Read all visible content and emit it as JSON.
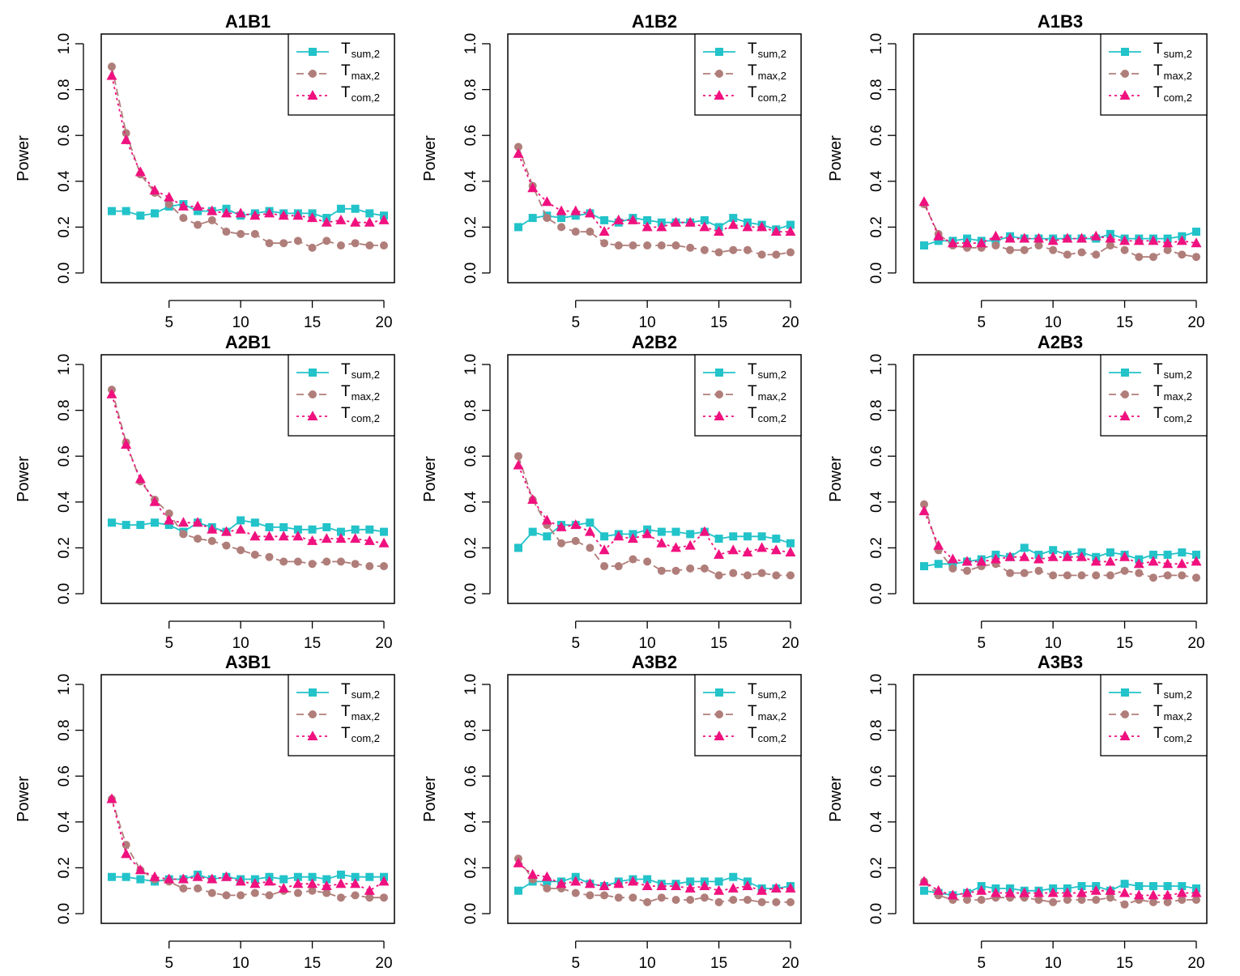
{
  "colors": {
    "sum": "#22C3C9",
    "max": "#B07E7A",
    "com": "#F0117F",
    "axis": "#000000"
  },
  "icons": {
    "sum": "square-marker",
    "max": "circle-marker",
    "com": "triangle-marker"
  },
  "legend": [
    {
      "key": "sum",
      "main": "T",
      "sub": "sum,2",
      "line": "solid"
    },
    {
      "key": "max",
      "main": "T",
      "sub": "max,2",
      "line": "dashed"
    },
    {
      "key": "com",
      "main": "T",
      "sub": "com,2",
      "line": "dotted"
    }
  ],
  "chart_data": [
    {
      "type": "line",
      "title": "A1B1",
      "xlabel": "",
      "ylabel": "Power",
      "xlim": [
        1,
        20
      ],
      "ylim": [
        0,
        1
      ],
      "xticks": [
        5,
        10,
        15,
        20
      ],
      "yticks": [
        "0.0",
        "0.2",
        "0.4",
        "0.6",
        "0.8",
        "1.0"
      ],
      "grid": false,
      "legend_position": "top-right",
      "x": [
        1,
        2,
        3,
        4,
        5,
        6,
        7,
        8,
        9,
        10,
        11,
        12,
        13,
        14,
        15,
        16,
        17,
        18,
        19,
        20
      ],
      "series": [
        {
          "key": "sum",
          "name": "T sum,2",
          "values": [
            0.27,
            0.27,
            0.25,
            0.26,
            0.29,
            0.3,
            0.27,
            0.27,
            0.28,
            0.25,
            0.26,
            0.27,
            0.26,
            0.26,
            0.26,
            0.24,
            0.28,
            0.28,
            0.26,
            0.25
          ]
        },
        {
          "key": "max",
          "name": "T max,2",
          "values": [
            0.9,
            0.61,
            0.43,
            0.35,
            0.3,
            0.24,
            0.21,
            0.23,
            0.18,
            0.17,
            0.17,
            0.13,
            0.13,
            0.14,
            0.11,
            0.14,
            0.12,
            0.13,
            0.12,
            0.12
          ]
        },
        {
          "key": "com",
          "name": "T com,2",
          "values": [
            0.86,
            0.58,
            0.44,
            0.36,
            0.33,
            0.29,
            0.29,
            0.27,
            0.26,
            0.26,
            0.25,
            0.26,
            0.25,
            0.25,
            0.24,
            0.22,
            0.23,
            0.22,
            0.22,
            0.23
          ]
        }
      ]
    },
    {
      "type": "line",
      "title": "A1B2",
      "xlabel": "",
      "ylabel": "Power",
      "xlim": [
        1,
        20
      ],
      "ylim": [
        0,
        1
      ],
      "xticks": [
        5,
        10,
        15,
        20
      ],
      "yticks": [
        "0.0",
        "0.2",
        "0.4",
        "0.6",
        "0.8",
        "1.0"
      ],
      "grid": false,
      "legend_position": "top-right",
      "x": [
        1,
        2,
        3,
        4,
        5,
        6,
        7,
        8,
        9,
        10,
        11,
        12,
        13,
        14,
        15,
        16,
        17,
        18,
        19,
        20
      ],
      "series": [
        {
          "key": "sum",
          "name": "T sum,2",
          "values": [
            0.2,
            0.24,
            0.25,
            0.24,
            0.25,
            0.26,
            0.23,
            0.22,
            0.24,
            0.23,
            0.22,
            0.22,
            0.22,
            0.23,
            0.2,
            0.24,
            0.22,
            0.21,
            0.19,
            0.21
          ]
        },
        {
          "key": "max",
          "name": "T max,2",
          "values": [
            0.55,
            0.38,
            0.24,
            0.2,
            0.18,
            0.18,
            0.13,
            0.12,
            0.12,
            0.12,
            0.12,
            0.12,
            0.11,
            0.1,
            0.09,
            0.1,
            0.1,
            0.08,
            0.08,
            0.09
          ]
        },
        {
          "key": "com",
          "name": "T com,2",
          "values": [
            0.52,
            0.37,
            0.31,
            0.27,
            0.27,
            0.26,
            0.18,
            0.23,
            0.23,
            0.2,
            0.2,
            0.22,
            0.22,
            0.2,
            0.18,
            0.21,
            0.2,
            0.2,
            0.18,
            0.18
          ]
        }
      ]
    },
    {
      "type": "line",
      "title": "A1B3",
      "xlabel": "",
      "ylabel": "Power",
      "xlim": [
        1,
        20
      ],
      "ylim": [
        0,
        1
      ],
      "xticks": [
        5,
        10,
        15,
        20
      ],
      "yticks": [
        "0.0",
        "0.2",
        "0.4",
        "0.6",
        "0.8",
        "1.0"
      ],
      "grid": false,
      "legend_position": "top-right",
      "x": [
        1,
        2,
        3,
        4,
        5,
        6,
        7,
        8,
        9,
        10,
        11,
        12,
        13,
        14,
        15,
        16,
        17,
        18,
        19,
        20
      ],
      "series": [
        {
          "key": "sum",
          "name": "T sum,2",
          "values": [
            0.12,
            0.14,
            0.14,
            0.15,
            0.14,
            0.14,
            0.16,
            0.15,
            0.15,
            0.15,
            0.15,
            0.15,
            0.15,
            0.17,
            0.15,
            0.15,
            0.15,
            0.15,
            0.16,
            0.18
          ]
        },
        {
          "key": "max",
          "name": "T max,2",
          "values": [
            0.3,
            0.17,
            0.12,
            0.11,
            0.11,
            0.12,
            0.1,
            0.1,
            0.12,
            0.1,
            0.08,
            0.09,
            0.08,
            0.12,
            0.1,
            0.07,
            0.07,
            0.1,
            0.08,
            0.07
          ]
        },
        {
          "key": "com",
          "name": "T com,2",
          "values": [
            0.31,
            0.16,
            0.13,
            0.13,
            0.13,
            0.16,
            0.15,
            0.15,
            0.15,
            0.14,
            0.15,
            0.15,
            0.16,
            0.15,
            0.14,
            0.14,
            0.14,
            0.13,
            0.14,
            0.13
          ]
        }
      ]
    },
    {
      "type": "line",
      "title": "A2B1",
      "xlabel": "",
      "ylabel": "Power",
      "xlim": [
        1,
        20
      ],
      "ylim": [
        0,
        1
      ],
      "xticks": [
        5,
        10,
        15,
        20
      ],
      "yticks": [
        "0.0",
        "0.2",
        "0.4",
        "0.6",
        "0.8",
        "1.0"
      ],
      "grid": false,
      "legend_position": "top-right",
      "x": [
        1,
        2,
        3,
        4,
        5,
        6,
        7,
        8,
        9,
        10,
        11,
        12,
        13,
        14,
        15,
        16,
        17,
        18,
        19,
        20
      ],
      "series": [
        {
          "key": "sum",
          "name": "T sum,2",
          "values": [
            0.31,
            0.3,
            0.3,
            0.31,
            0.3,
            0.27,
            0.31,
            0.29,
            0.27,
            0.32,
            0.31,
            0.29,
            0.29,
            0.28,
            0.28,
            0.29,
            0.27,
            0.28,
            0.28,
            0.27
          ]
        },
        {
          "key": "max",
          "name": "T max,2",
          "values": [
            0.89,
            0.66,
            0.49,
            0.41,
            0.35,
            0.26,
            0.24,
            0.23,
            0.21,
            0.19,
            0.17,
            0.16,
            0.14,
            0.14,
            0.13,
            0.14,
            0.14,
            0.13,
            0.12,
            0.12
          ]
        },
        {
          "key": "com",
          "name": "T com,2",
          "values": [
            0.87,
            0.65,
            0.5,
            0.4,
            0.32,
            0.31,
            0.31,
            0.28,
            0.27,
            0.28,
            0.25,
            0.25,
            0.25,
            0.25,
            0.23,
            0.24,
            0.24,
            0.24,
            0.23,
            0.22
          ]
        }
      ]
    },
    {
      "type": "line",
      "title": "A2B2",
      "xlabel": "",
      "ylabel": "Power",
      "xlim": [
        1,
        20
      ],
      "ylim": [
        0,
        1
      ],
      "xticks": [
        5,
        10,
        15,
        20
      ],
      "yticks": [
        "0.0",
        "0.2",
        "0.4",
        "0.6",
        "0.8",
        "1.0"
      ],
      "grid": false,
      "legend_position": "top-right",
      "x": [
        1,
        2,
        3,
        4,
        5,
        6,
        7,
        8,
        9,
        10,
        11,
        12,
        13,
        14,
        15,
        16,
        17,
        18,
        19,
        20
      ],
      "series": [
        {
          "key": "sum",
          "name": "T sum,2",
          "values": [
            0.2,
            0.27,
            0.25,
            0.3,
            0.3,
            0.31,
            0.25,
            0.26,
            0.26,
            0.28,
            0.27,
            0.27,
            0.26,
            0.27,
            0.24,
            0.25,
            0.25,
            0.25,
            0.24,
            0.22
          ]
        },
        {
          "key": "max",
          "name": "T max,2",
          "values": [
            0.6,
            0.41,
            0.3,
            0.22,
            0.23,
            0.2,
            0.12,
            0.12,
            0.15,
            0.14,
            0.1,
            0.1,
            0.11,
            0.11,
            0.08,
            0.09,
            0.08,
            0.09,
            0.08,
            0.08
          ]
        },
        {
          "key": "com",
          "name": "T com,2",
          "values": [
            0.56,
            0.41,
            0.32,
            0.29,
            0.3,
            0.27,
            0.19,
            0.25,
            0.24,
            0.26,
            0.22,
            0.2,
            0.21,
            0.27,
            0.17,
            0.19,
            0.18,
            0.2,
            0.19,
            0.18
          ]
        }
      ]
    },
    {
      "type": "line",
      "title": "A2B3",
      "xlabel": "",
      "ylabel": "Power",
      "xlim": [
        1,
        20
      ],
      "ylim": [
        0,
        1
      ],
      "xticks": [
        5,
        10,
        15,
        20
      ],
      "yticks": [
        "0.0",
        "0.2",
        "0.4",
        "0.6",
        "0.8",
        "1.0"
      ],
      "grid": false,
      "legend_position": "top-right",
      "x": [
        1,
        2,
        3,
        4,
        5,
        6,
        7,
        8,
        9,
        10,
        11,
        12,
        13,
        14,
        15,
        16,
        17,
        18,
        19,
        20
      ],
      "series": [
        {
          "key": "sum",
          "name": "T sum,2",
          "values": [
            0.12,
            0.13,
            0.13,
            0.14,
            0.15,
            0.17,
            0.16,
            0.2,
            0.17,
            0.19,
            0.17,
            0.18,
            0.16,
            0.18,
            0.17,
            0.15,
            0.17,
            0.17,
            0.18,
            0.17
          ]
        },
        {
          "key": "max",
          "name": "T max,2",
          "values": [
            0.39,
            0.19,
            0.11,
            0.1,
            0.12,
            0.13,
            0.09,
            0.09,
            0.1,
            0.08,
            0.08,
            0.08,
            0.08,
            0.08,
            0.1,
            0.09,
            0.07,
            0.08,
            0.08,
            0.07
          ]
        },
        {
          "key": "com",
          "name": "T com,2",
          "values": [
            0.36,
            0.21,
            0.15,
            0.14,
            0.14,
            0.15,
            0.16,
            0.16,
            0.15,
            0.16,
            0.16,
            0.16,
            0.14,
            0.14,
            0.16,
            0.13,
            0.14,
            0.13,
            0.13,
            0.14
          ]
        }
      ]
    },
    {
      "type": "line",
      "title": "A3B1",
      "xlabel": "",
      "ylabel": "Power",
      "xlim": [
        1,
        20
      ],
      "ylim": [
        0,
        1
      ],
      "xticks": [
        5,
        10,
        15,
        20
      ],
      "yticks": [
        "0.0",
        "0.2",
        "0.4",
        "0.6",
        "0.8",
        "1.0"
      ],
      "grid": false,
      "legend_position": "top-right",
      "x": [
        1,
        2,
        3,
        4,
        5,
        6,
        7,
        8,
        9,
        10,
        11,
        12,
        13,
        14,
        15,
        16,
        17,
        18,
        19,
        20
      ],
      "series": [
        {
          "key": "sum",
          "name": "T sum,2",
          "values": [
            0.16,
            0.16,
            0.15,
            0.14,
            0.15,
            0.15,
            0.17,
            0.15,
            0.16,
            0.15,
            0.15,
            0.16,
            0.15,
            0.16,
            0.16,
            0.15,
            0.17,
            0.16,
            0.16,
            0.16
          ]
        },
        {
          "key": "max",
          "name": "T max,2",
          "values": [
            0.5,
            0.3,
            0.19,
            0.15,
            0.14,
            0.11,
            0.11,
            0.09,
            0.08,
            0.08,
            0.09,
            0.08,
            0.1,
            0.09,
            0.1,
            0.09,
            0.07,
            0.08,
            0.07,
            0.07
          ]
        },
        {
          "key": "com",
          "name": "T com,2",
          "values": [
            0.5,
            0.26,
            0.19,
            0.16,
            0.15,
            0.15,
            0.16,
            0.15,
            0.16,
            0.14,
            0.13,
            0.14,
            0.11,
            0.13,
            0.13,
            0.12,
            0.13,
            0.13,
            0.1,
            0.14
          ]
        }
      ]
    },
    {
      "type": "line",
      "title": "A3B2",
      "xlabel": "",
      "ylabel": "Power",
      "xlim": [
        1,
        20
      ],
      "ylim": [
        0,
        1
      ],
      "xticks": [
        5,
        10,
        15,
        20
      ],
      "yticks": [
        "0.0",
        "0.2",
        "0.4",
        "0.6",
        "0.8",
        "1.0"
      ],
      "grid": false,
      "legend_position": "top-right",
      "x": [
        1,
        2,
        3,
        4,
        5,
        6,
        7,
        8,
        9,
        10,
        11,
        12,
        13,
        14,
        15,
        16,
        17,
        18,
        19,
        20
      ],
      "series": [
        {
          "key": "sum",
          "name": "T sum,2",
          "values": [
            0.1,
            0.14,
            0.14,
            0.14,
            0.16,
            0.13,
            0.12,
            0.14,
            0.15,
            0.15,
            0.13,
            0.13,
            0.14,
            0.14,
            0.14,
            0.16,
            0.14,
            0.11,
            0.11,
            0.12
          ]
        },
        {
          "key": "max",
          "name": "T max,2",
          "values": [
            0.24,
            0.15,
            0.11,
            0.11,
            0.09,
            0.08,
            0.08,
            0.07,
            0.07,
            0.05,
            0.07,
            0.06,
            0.06,
            0.07,
            0.05,
            0.06,
            0.06,
            0.05,
            0.05,
            0.05
          ]
        },
        {
          "key": "com",
          "name": "T com,2",
          "values": [
            0.22,
            0.17,
            0.16,
            0.13,
            0.14,
            0.13,
            0.12,
            0.13,
            0.14,
            0.12,
            0.12,
            0.12,
            0.11,
            0.12,
            0.1,
            0.11,
            0.12,
            0.1,
            0.11,
            0.11
          ]
        }
      ]
    },
    {
      "type": "line",
      "title": "A3B3",
      "xlabel": "",
      "ylabel": "Power",
      "xlim": [
        1,
        20
      ],
      "ylim": [
        0,
        1
      ],
      "xticks": [
        5,
        10,
        15,
        20
      ],
      "yticks": [
        "0.0",
        "0.2",
        "0.4",
        "0.6",
        "0.8",
        "1.0"
      ],
      "grid": false,
      "legend_position": "top-right",
      "x": [
        1,
        2,
        3,
        4,
        5,
        6,
        7,
        8,
        9,
        10,
        11,
        12,
        13,
        14,
        15,
        16,
        17,
        18,
        19,
        20
      ],
      "series": [
        {
          "key": "sum",
          "name": "T sum,2",
          "values": [
            0.1,
            0.09,
            0.08,
            0.09,
            0.12,
            0.11,
            0.11,
            0.1,
            0.1,
            0.11,
            0.11,
            0.12,
            0.12,
            0.1,
            0.13,
            0.12,
            0.12,
            0.12,
            0.12,
            0.11
          ]
        },
        {
          "key": "max",
          "name": "T max,2",
          "values": [
            0.14,
            0.08,
            0.06,
            0.06,
            0.06,
            0.07,
            0.07,
            0.07,
            0.06,
            0.05,
            0.06,
            0.06,
            0.06,
            0.07,
            0.04,
            0.06,
            0.05,
            0.05,
            0.06,
            0.06
          ]
        },
        {
          "key": "com",
          "name": "T com,2",
          "values": [
            0.14,
            0.1,
            0.08,
            0.09,
            0.1,
            0.09,
            0.09,
            0.09,
            0.09,
            0.09,
            0.09,
            0.09,
            0.1,
            0.1,
            0.09,
            0.08,
            0.08,
            0.08,
            0.09,
            0.09
          ]
        }
      ]
    }
  ]
}
